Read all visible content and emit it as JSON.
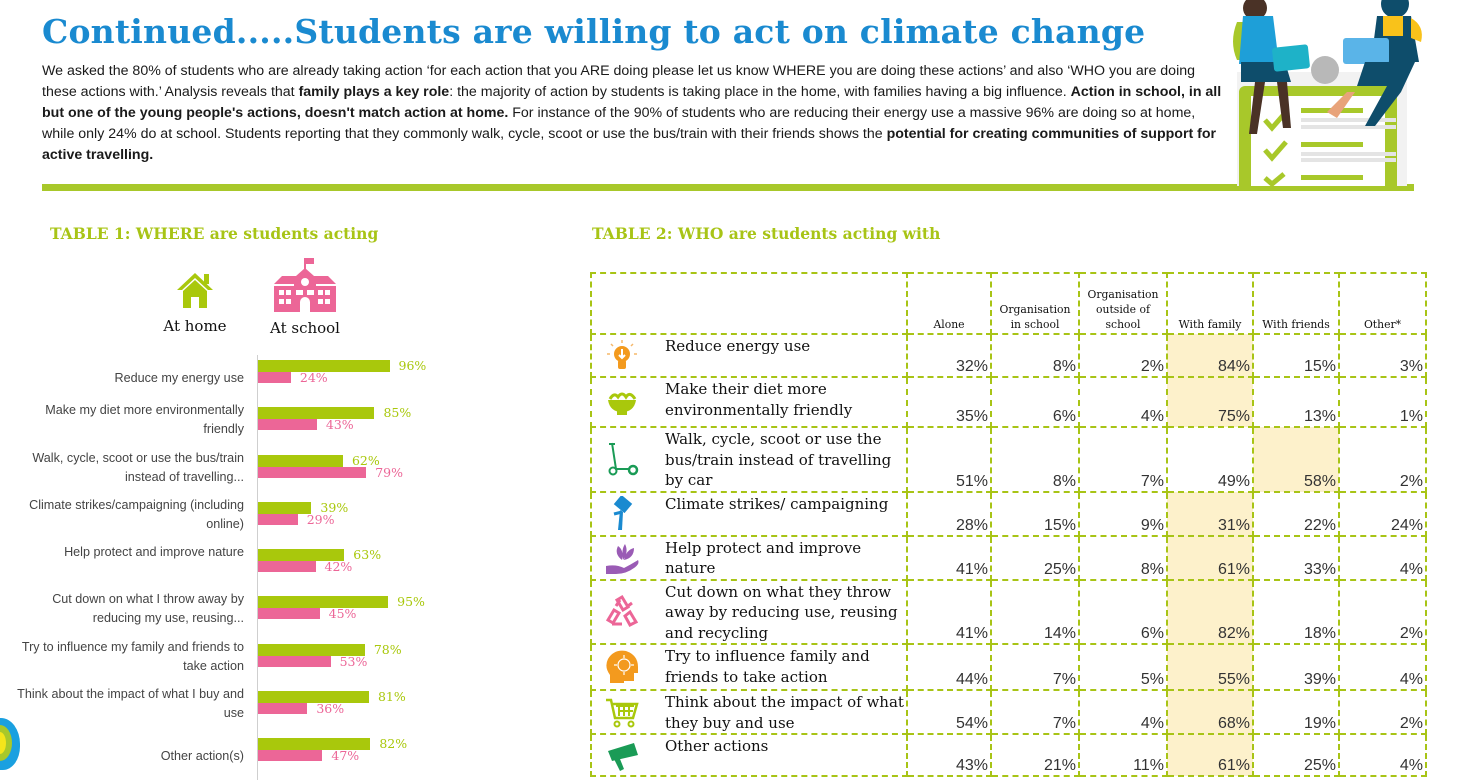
{
  "title": "Continued.....Students are willing to act on climate change",
  "intro": {
    "segments": [
      {
        "text": "We asked the 80% of students who are already taking action ‘for each action that you ARE doing please let us know WHERE you are doing these actions’ and also ‘WHO you are doing these actions with.’ Analysis reveals that ",
        "bold": false
      },
      {
        "text": "family plays a key role",
        "bold": true
      },
      {
        "text": ": the majority of action by students is taking place in the home, with families having a big influence. ",
        "bold": false
      },
      {
        "text": "Action in school, in all but one of the young people's actions, doesn't match action at home.",
        "bold": true
      },
      {
        "text": " For instance of the 90% of students who are reducing their energy use a massive 96% are doing so at home, while only 24% do at school. Students reporting that they commonly walk, cycle, scoot or use the bus/train with their friends shows the ",
        "bold": false
      },
      {
        "text": "potential for creating communities of support for active travelling.",
        "bold": true
      }
    ]
  },
  "colors": {
    "title_blue": "#1a8ad0",
    "accent_green": "#a8c416",
    "home_green": "#a9c80c",
    "school_pink": "#ec6697",
    "highlight_cream": "#fdf1cb"
  },
  "table1": {
    "title": "TABLE 1: WHERE are students acting",
    "legend": [
      {
        "label": "At home",
        "icon": "house-icon"
      },
      {
        "label": "At school",
        "icon": "school-building-icon"
      }
    ]
  },
  "chart_data": {
    "type": "bar",
    "orientation": "horizontal",
    "title": "TABLE 1: WHERE are students acting",
    "xlabel": "",
    "ylabel": "",
    "xlim": [
      0,
      100
    ],
    "grid": false,
    "legend_position": "top",
    "categories": [
      "Reduce my energy use",
      "Make my diet more environmentally friendly",
      "Walk, cycle, scoot or use the bus/train instead of travelling...",
      "Climate strikes/campaigning (including online)",
      "Help protect and improve nature",
      "Cut down on what I throw away by reducing my use, reusing...",
      "Try to influence my family and friends to take action",
      "Think about the impact of what I buy and use",
      "Other action(s)"
    ],
    "series": [
      {
        "name": "At home",
        "color": "#a9c80c",
        "values": [
          96,
          85,
          62,
          39,
          63,
          95,
          78,
          81,
          82
        ]
      },
      {
        "name": "At school",
        "color": "#ec6697",
        "values": [
          24,
          43,
          79,
          29,
          42,
          45,
          53,
          36,
          47
        ]
      }
    ],
    "unit": "%"
  },
  "table2": {
    "title": "TABLE 2: WHO are students acting with",
    "headers": [
      "Alone",
      "Organisation in school",
      "Organisation outside of school",
      "With family",
      "With friends",
      "Other*"
    ],
    "rows": [
      {
        "action": "Reduce energy use",
        "icon": "lightbulb-icon",
        "values": [
          "32%",
          "8%",
          "2%",
          "84%",
          "15%",
          "3%"
        ],
        "highlight": [
          3
        ]
      },
      {
        "action": "Make their diet more environmentally friendly",
        "icon": "salad-bowl-icon",
        "values": [
          "35%",
          "6%",
          "4%",
          "75%",
          "13%",
          "1%"
        ],
        "highlight": [
          3
        ]
      },
      {
        "action": "Walk, cycle, scoot or use the bus/train instead of travelling by car",
        "icon": "scooter-icon",
        "values": [
          "51%",
          "8%",
          "7%",
          "49%",
          "58%",
          "2%"
        ],
        "highlight": [
          4
        ]
      },
      {
        "action": "Climate strikes/ campaigning",
        "icon": "protest-sign-icon",
        "values": [
          "28%",
          "15%",
          "9%",
          "31%",
          "22%",
          "24%"
        ],
        "highlight": [
          3
        ]
      },
      {
        "action": "Help protect and improve nature",
        "icon": "hand-leaves-icon",
        "values": [
          "41%",
          "25%",
          "8%",
          "61%",
          "33%",
          "4%"
        ],
        "highlight": [
          3
        ]
      },
      {
        "action": "Cut down on what they throw away by reducing use, reusing and recycling",
        "icon": "recycle-icon",
        "values": [
          "41%",
          "14%",
          "6%",
          "82%",
          "18%",
          "2%"
        ],
        "highlight": [
          3
        ]
      },
      {
        "action": "Try to influence family and friends to take action",
        "icon": "head-idea-icon",
        "values": [
          "44%",
          "7%",
          "5%",
          "55%",
          "39%",
          "4%"
        ],
        "highlight": [
          3
        ]
      },
      {
        "action": "Think about the impact of what they buy and use",
        "icon": "shopping-cart-icon",
        "values": [
          "54%",
          "7%",
          "4%",
          "68%",
          "19%",
          "2%"
        ],
        "highlight": [
          3
        ]
      },
      {
        "action": "Other actions",
        "icon": "megaphone-icon",
        "values": [
          "43%",
          "21%",
          "11%",
          "61%",
          "25%",
          "4%"
        ],
        "highlight": [
          3
        ]
      }
    ]
  }
}
